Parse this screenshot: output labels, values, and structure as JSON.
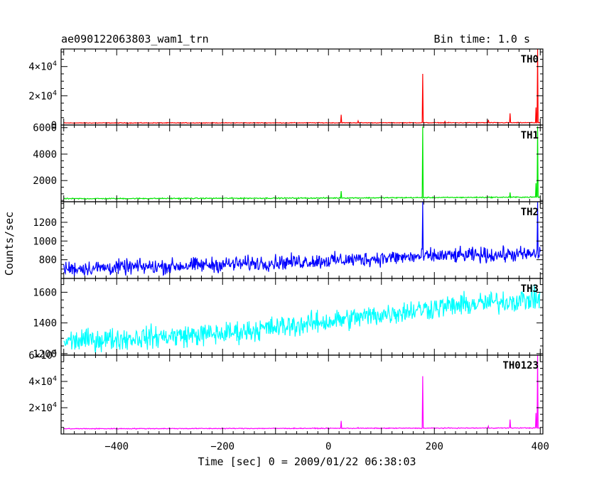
{
  "header": {
    "title": "ae090122063803_wam1_trn",
    "bin_time": "Bin time: 1.0 s"
  },
  "chart_data": {
    "type": "line",
    "xlabel": "Time [sec] 0 = 2009/01/22 06:38:03",
    "ylabel": "Counts/sec",
    "xlim": [
      -505,
      405
    ],
    "x_ticks": [
      -400,
      -200,
      0,
      200,
      400
    ],
    "x_tick_labels": [
      "−400",
      "−200",
      "0",
      "200",
      "400"
    ],
    "panels": [
      {
        "name": "TH0",
        "color": "#ff0000",
        "ylim": [
          0,
          52000
        ],
        "yticks": [
          0,
          20000,
          40000
        ],
        "ytick_labels": [
          {
            "mant": "0",
            "exp": ""
          },
          {
            "mant": "2×10",
            "exp": "4"
          },
          {
            "mant": "4×10",
            "exp": "4"
          }
        ],
        "series": {
          "baseline": [
            [
              -500,
              1400
            ],
            [
              0,
              1500
            ],
            [
              400,
              1600
            ]
          ],
          "noise": 150,
          "spikes": [
            [
              24,
              7000
            ],
            [
              56,
              2800
            ],
            [
              178,
              35000
            ],
            [
              220,
              2500
            ],
            [
              302,
              3500
            ],
            [
              343,
              8000
            ],
            [
              392,
              12000
            ],
            [
              395,
              52000
            ]
          ]
        }
      },
      {
        "name": "TH1",
        "color": "#00e600",
        "ylim": [
          400,
          6200
        ],
        "yticks": [
          2000,
          4000,
          6000
        ],
        "ytick_labels": [
          {
            "mant": "2000",
            "exp": ""
          },
          {
            "mant": "4000",
            "exp": ""
          },
          {
            "mant": "6000",
            "exp": ""
          }
        ],
        "series": {
          "baseline": [
            [
              -500,
              630
            ],
            [
              0,
              680
            ],
            [
              400,
              750
            ]
          ],
          "noise": 25,
          "spikes": [
            [
              24,
              1200
            ],
            [
              178,
              6100
            ],
            [
              343,
              1100
            ],
            [
              392,
              1800
            ],
            [
              395,
              6100
            ]
          ]
        }
      },
      {
        "name": "TH2",
        "color": "#0000ff",
        "ylim": [
          600,
          1420
        ],
        "yticks": [
          800,
          1000,
          1200
        ],
        "ytick_labels": [
          {
            "mant": "800",
            "exp": ""
          },
          {
            "mant": "1000",
            "exp": ""
          },
          {
            "mant": "1200",
            "exp": ""
          }
        ],
        "series": {
          "baseline": [
            [
              -500,
              705
            ],
            [
              -300,
              730
            ],
            [
              0,
              790
            ],
            [
              200,
              840
            ],
            [
              400,
              860
            ]
          ],
          "noise": 50,
          "spikes": [
            [
              178,
              1420
            ],
            [
              395,
              1420
            ]
          ]
        }
      },
      {
        "name": "TH3",
        "color": "#00ffff",
        "ylim": [
          1190,
          1690
        ],
        "yticks": [
          1200,
          1400,
          1600
        ],
        "ytick_labels": [
          {
            "mant": "1200",
            "exp": ""
          },
          {
            "mant": "1400",
            "exp": ""
          },
          {
            "mant": "1600",
            "exp": ""
          }
        ],
        "series": {
          "baseline": [
            [
              -500,
              1280
            ],
            [
              -200,
              1330
            ],
            [
              0,
              1410
            ],
            [
              200,
              1500
            ],
            [
              400,
              1560
            ]
          ],
          "noise": 45,
          "spikes": []
        }
      },
      {
        "name": "TH0123",
        "color": "#ff00ff",
        "ylim": [
          0,
          60000
        ],
        "yticks": [
          20000,
          40000,
          60000
        ],
        "ytick_labels": [
          {
            "mant": "2×10",
            "exp": "4"
          },
          {
            "mant": "4×10",
            "exp": "4"
          },
          {
            "mant": "6×10",
            "exp": "4"
          }
        ],
        "series": {
          "baseline": [
            [
              -500,
              4000
            ],
            [
              0,
              4300
            ],
            [
              400,
              4600
            ]
          ],
          "noise": 200,
          "spikes": [
            [
              24,
              10000
            ],
            [
              56,
              5000
            ],
            [
              178,
              44000
            ],
            [
              302,
              6000
            ],
            [
              343,
              11000
            ],
            [
              392,
              16000
            ],
            [
              395,
              60000
            ]
          ]
        }
      }
    ]
  }
}
